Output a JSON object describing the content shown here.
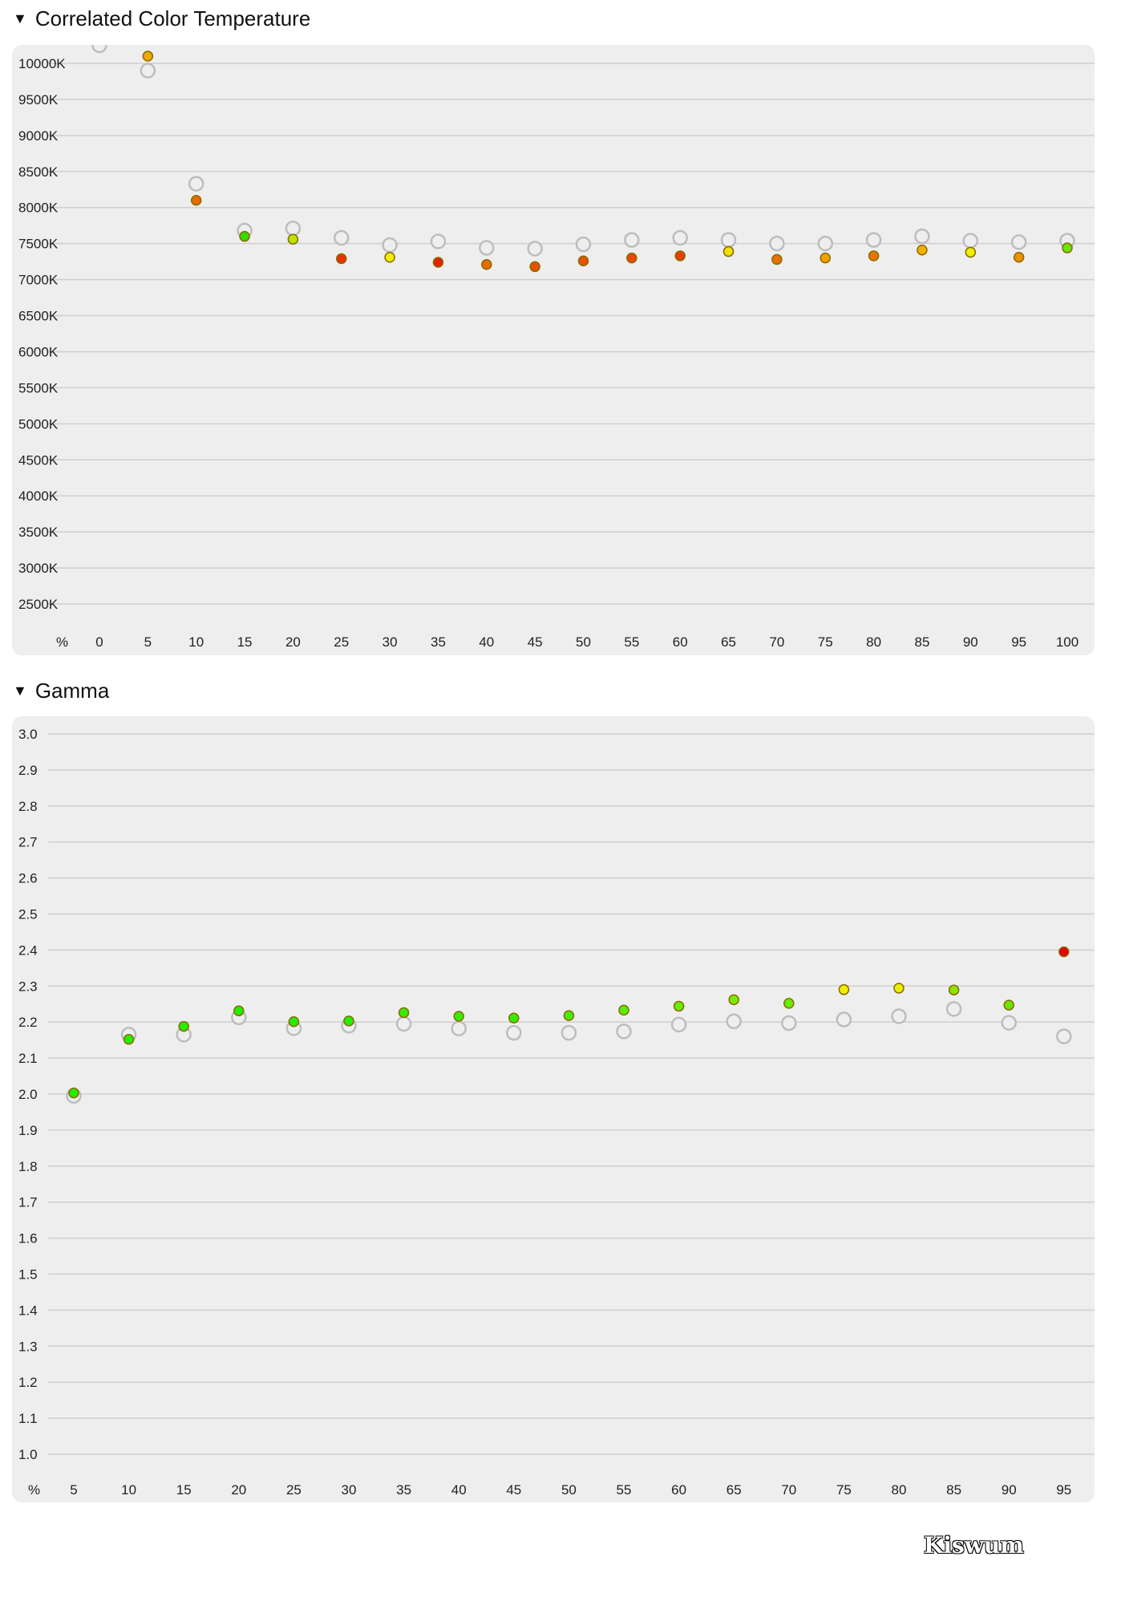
{
  "sections": {
    "cct_title": "Correlated Color Temperature",
    "gamma_title": "Gamma"
  },
  "logo": "Kiswum",
  "chart_data": [
    {
      "type": "scatter",
      "title": "Correlated Color Temperature",
      "x_label_unit": "%",
      "y_ticks": [
        "10000K",
        "9500K",
        "9000K",
        "8500K",
        "8000K",
        "7500K",
        "7000K",
        "6500K",
        "6000K",
        "5500K",
        "5000K",
        "4500K",
        "4000K",
        "3500K",
        "3000K",
        "2500K"
      ],
      "ylim": [
        2500,
        10250
      ],
      "x": [
        0,
        5,
        10,
        15,
        20,
        25,
        30,
        35,
        40,
        45,
        50,
        55,
        60,
        65,
        70,
        75,
        80,
        85,
        90,
        95,
        100
      ],
      "series": [
        {
          "role": "reference",
          "values": [
            10250,
            9900,
            8330,
            7680,
            7710,
            7580,
            7480,
            7530,
            7440,
            7430,
            7490,
            7550,
            7580,
            7550,
            7500,
            7500,
            7550,
            7600,
            7540,
            7520,
            7540
          ]
        },
        {
          "role": "measured",
          "values": [
            null,
            10100,
            8100,
            7600,
            7560,
            7290,
            7310,
            7240,
            7210,
            7180,
            7260,
            7300,
            7330,
            7390,
            7280,
            7300,
            7330,
            7410,
            7380,
            7310,
            7440
          ],
          "colors": [
            null,
            "#f0a800",
            "#e86a00",
            "#33dd00",
            "#b8e600",
            "#e83000",
            "#f0f000",
            "#e82000",
            "#e86a00",
            "#e85000",
            "#e85000",
            "#e84800",
            "#e84000",
            "#f2e000",
            "#e87000",
            "#f0a000",
            "#e87800",
            "#f0b000",
            "#f0f000",
            "#e89000",
            "#66e600"
          ]
        }
      ]
    },
    {
      "type": "scatter",
      "title": "Gamma",
      "x_label_unit": "%",
      "y_ticks": [
        "3.0",
        "2.9",
        "2.8",
        "2.7",
        "2.6",
        "2.5",
        "2.4",
        "2.3",
        "2.2",
        "2.1",
        "2.0",
        "1.9",
        "1.8",
        "1.7",
        "1.6",
        "1.5",
        "1.4",
        "1.3",
        "1.2",
        "1.1",
        "1.0"
      ],
      "ylim": [
        1.0,
        3.0
      ],
      "x": [
        5,
        10,
        15,
        20,
        25,
        30,
        35,
        40,
        45,
        50,
        55,
        60,
        65,
        70,
        75,
        80,
        85,
        90,
        95
      ],
      "series": [
        {
          "role": "reference",
          "values": [
            1.995,
            2.165,
            2.165,
            2.213,
            2.183,
            2.19,
            2.195,
            2.182,
            2.17,
            2.17,
            2.174,
            2.193,
            2.202,
            2.197,
            2.207,
            2.216,
            2.236,
            2.198,
            2.16
          ]
        },
        {
          "role": "measured",
          "values": [
            2.003,
            2.152,
            2.188,
            2.231,
            2.201,
            2.203,
            2.226,
            2.216,
            2.211,
            2.218,
            2.233,
            2.244,
            2.262,
            2.252,
            2.29,
            2.294,
            2.289,
            2.247,
            2.395
          ],
          "colors": [
            "#22ee00",
            "#22ee00",
            "#22ee00",
            "#22ee00",
            "#22ee00",
            "#22ee00",
            "#33ee00",
            "#33ee00",
            "#33ee00",
            "#44ee00",
            "#55ee00",
            "#66ee00",
            "#77ee00",
            "#66ee00",
            "#f0f000",
            "#e6f000",
            "#88e600",
            "#66e600",
            "#e80000"
          ]
        }
      ]
    }
  ]
}
